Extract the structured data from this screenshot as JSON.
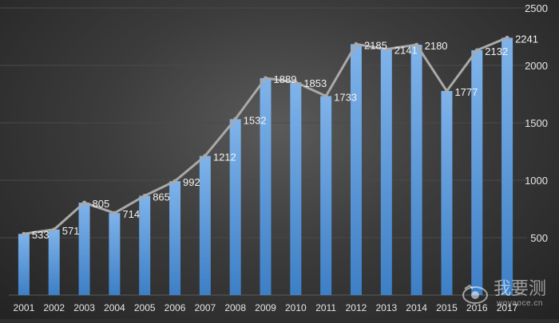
{
  "chart_data": {
    "type": "bar",
    "categories": [
      "2001",
      "2002",
      "2003",
      "2004",
      "2005",
      "2006",
      "2007",
      "2008",
      "2009",
      "2010",
      "2011",
      "2012",
      "2013",
      "2014",
      "2015",
      "2016",
      "2017"
    ],
    "values": [
      533,
      571,
      805,
      714,
      865,
      992,
      1212,
      1532,
      1889,
      1853,
      1733,
      2185,
      2141,
      2180,
      1777,
      2132,
      2241
    ],
    "overlay_line": true,
    "title": "",
    "xlabel": "",
    "ylabel": "",
    "ylim": [
      0,
      2500
    ],
    "yticks": [
      500,
      1000,
      1500,
      2000,
      2500
    ],
    "y_axis_position": "right",
    "grid": true,
    "legend": "none",
    "colors": {
      "bar_top": "#7fb3ea",
      "bar_bottom": "#3d7fc6",
      "line": "#a9a9a9",
      "label": "#f2f2f2",
      "tick": "#e6e6e6",
      "grid": "#4a4a4a"
    }
  },
  "watermark": {
    "name": "我要测",
    "url": "woyaoce.cn",
    "icon": "camera-logo-icon"
  }
}
